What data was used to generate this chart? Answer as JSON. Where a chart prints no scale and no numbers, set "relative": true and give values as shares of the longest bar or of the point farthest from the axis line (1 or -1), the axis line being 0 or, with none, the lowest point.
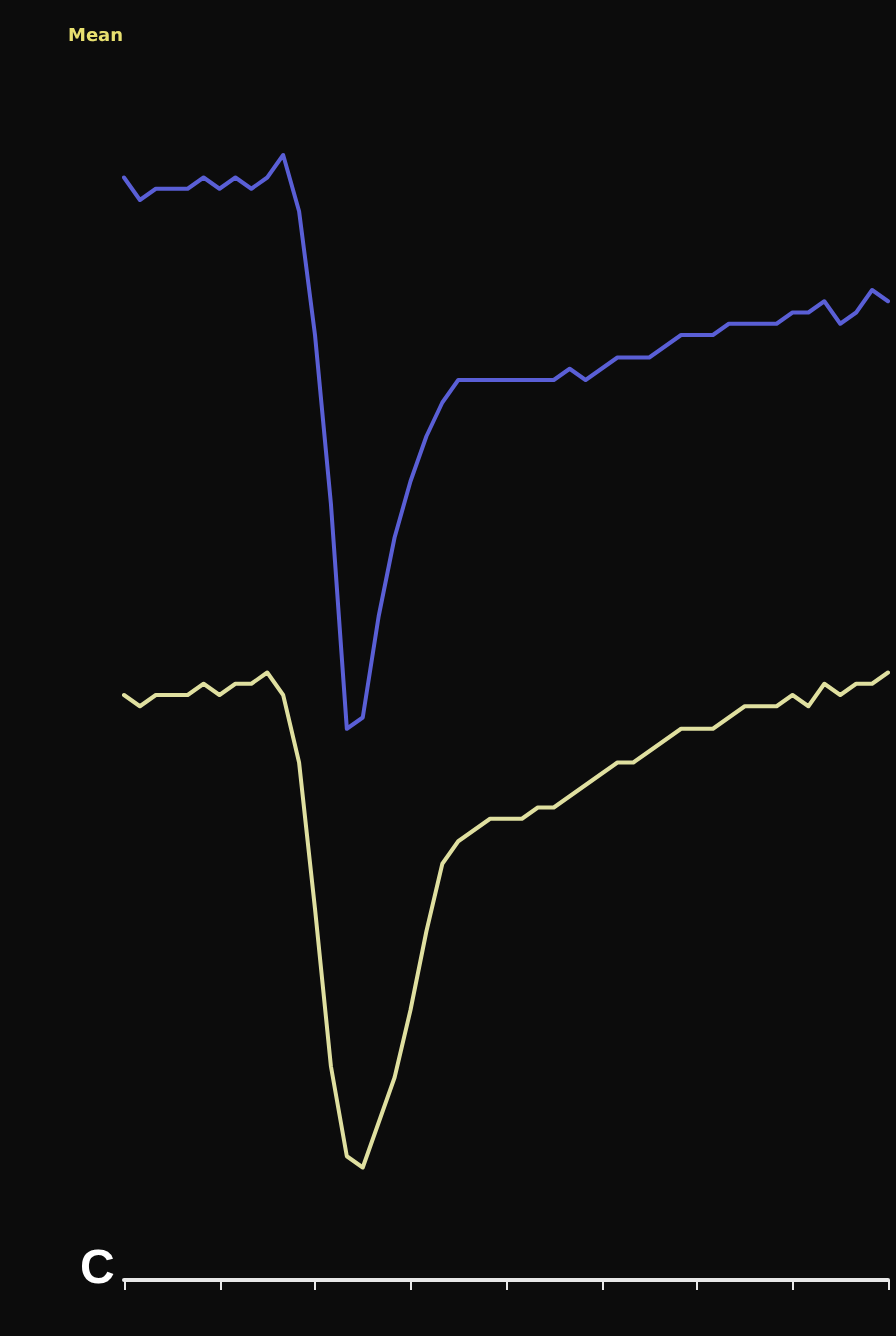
{
  "chart_data": {
    "type": "line",
    "relative": true,
    "annotations": [
      "Mean",
      "C"
    ],
    "marker": "none",
    "line_style": "solid",
    "grid": false,
    "categories": [
      null,
      null,
      null,
      null,
      null,
      null,
      null,
      null,
      null,
      null,
      null,
      null,
      null,
      null,
      null,
      null,
      null,
      null,
      null,
      null,
      null,
      null,
      null,
      null,
      null,
      null,
      null,
      null,
      null,
      null,
      null,
      null,
      null,
      null,
      null,
      null,
      null,
      null,
      null,
      null,
      null,
      null,
      null,
      null,
      null,
      null,
      null,
      null,
      null
    ],
    "series": [
      {
        "color": "#5a5fd6",
        "values": [
          0.98,
          0.96,
          0.97,
          0.97,
          0.97,
          0.98,
          0.97,
          0.98,
          0.97,
          0.98,
          1.0,
          0.95,
          0.84,
          0.69,
          0.49,
          0.5,
          0.59,
          0.66,
          0.71,
          0.75,
          0.78,
          0.8,
          0.8,
          0.8,
          0.8,
          0.8,
          0.8,
          0.8,
          0.81,
          0.8,
          0.81,
          0.82,
          0.82,
          0.82,
          0.83,
          0.84,
          0.84,
          0.84,
          0.85,
          0.85,
          0.85,
          0.85,
          0.86,
          0.86,
          0.87,
          0.85,
          0.86,
          0.88,
          0.87
        ]
      },
      {
        "color": "#e0e0a0",
        "values": [
          0.52,
          0.51,
          0.52,
          0.52,
          0.52,
          0.53,
          0.52,
          0.53,
          0.53,
          0.54,
          0.52,
          0.46,
          0.33,
          0.19,
          0.11,
          0.1,
          0.14,
          0.18,
          0.24,
          0.31,
          0.37,
          0.39,
          0.4,
          0.41,
          0.41,
          0.41,
          0.42,
          0.42,
          0.43,
          0.44,
          0.45,
          0.46,
          0.46,
          0.47,
          0.48,
          0.49,
          0.49,
          0.49,
          0.5,
          0.51,
          0.51,
          0.51,
          0.52,
          0.51,
          0.53,
          0.52,
          0.53,
          0.53,
          0.54
        ]
      }
    ]
  }
}
